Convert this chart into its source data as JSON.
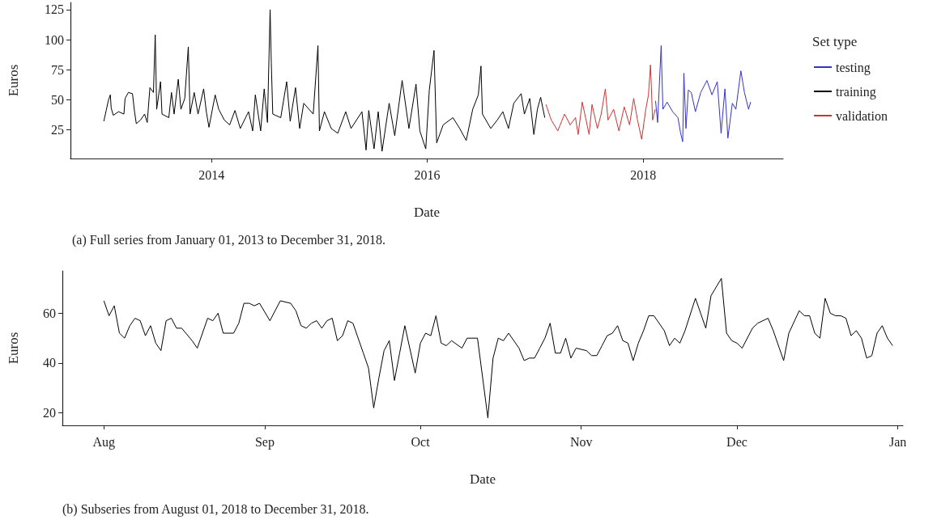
{
  "chart_data": [
    {
      "type": "line",
      "xlabel": "Date",
      "ylabel": "Euros",
      "legend_title": "Set type",
      "legend": "right",
      "grid": false,
      "xlim": [
        "2012-09-10",
        "2019-04-20"
      ],
      "xticks": [
        {
          "value": "2014-01-01",
          "label": "2014"
        },
        {
          "value": "2016-01-01",
          "label": "2016"
        },
        {
          "value": "2018-01-01",
          "label": "2018"
        }
      ],
      "ylim": [
        1,
        131
      ],
      "yticks": [
        25,
        50,
        75,
        100,
        125
      ],
      "annotations": [
        "(a) Full series from January 01, 2013 to December 31, 2018."
      ],
      "series": [
        {
          "name": "testing",
          "color": "#3333cc",
          "x": [
            "2018-02-12",
            "2018-02-19",
            "2018-03-03",
            "2018-03-09",
            "2018-03-23",
            "2018-04-11",
            "2018-04-29",
            "2018-05-08",
            "2018-05-15",
            "2018-05-19",
            "2018-05-26",
            "2018-06-03",
            "2018-06-13",
            "2018-06-27",
            "2018-07-15",
            "2018-08-05",
            "2018-08-22",
            "2018-09-09",
            "2018-09-22",
            "2018-10-05",
            "2018-10-15",
            "2018-10-30",
            "2018-11-11",
            "2018-11-28",
            "2018-12-10",
            "2018-12-24",
            "2018-12-31"
          ],
          "values": [
            49,
            31,
            95,
            42,
            48,
            40,
            35,
            22,
            15,
            72,
            26,
            58,
            56,
            40,
            56,
            66,
            54,
            65,
            22,
            59,
            18,
            47,
            42,
            74,
            56,
            42,
            48
          ]
        },
        {
          "name": "training",
          "color": "#000000",
          "x": [
            "2013-01-01",
            "2013-01-09",
            "2013-01-16",
            "2013-01-23",
            "2013-01-26",
            "2013-02-02",
            "2013-02-20",
            "2013-03-10",
            "2013-03-14",
            "2013-03-25",
            "2013-04-08",
            "2013-04-15",
            "2013-04-21",
            "2013-05-05",
            "2013-05-19",
            "2013-05-28",
            "2013-06-06",
            "2013-06-18",
            "2013-06-24",
            "2013-06-29",
            "2013-07-12",
            "2013-07-17",
            "2013-08-09",
            "2013-08-18",
            "2013-08-27",
            "2013-09-10",
            "2013-09-19",
            "2013-10-02",
            "2013-10-14",
            "2013-10-20",
            "2013-11-03",
            "2013-11-16",
            "2013-12-05",
            "2013-12-14",
            "2013-12-23",
            "2014-01-13",
            "2014-01-25",
            "2014-02-13",
            "2014-03-03",
            "2014-03-21",
            "2014-04-08",
            "2014-05-06",
            "2014-05-20",
            "2014-05-29",
            "2014-06-16",
            "2014-06-28",
            "2014-07-09",
            "2014-07-18",
            "2014-07-22",
            "2014-07-27",
            "2014-08-23",
            "2014-09-12",
            "2014-09-24",
            "2014-10-12",
            "2014-10-26",
            "2014-11-09",
            "2014-12-11",
            "2014-12-27",
            "2015-01-01",
            "2015-01-18",
            "2015-02-10",
            "2015-03-04",
            "2015-03-31",
            "2015-04-18",
            "2015-05-25",
            "2015-06-08",
            "2015-06-17",
            "2015-07-05",
            "2015-07-19",
            "2015-08-01",
            "2015-08-25",
            "2015-09-13",
            "2015-10-08",
            "2015-10-31",
            "2015-11-24",
            "2015-12-07",
            "2015-12-27",
            "2016-01-08",
            "2016-01-24",
            "2016-02-02",
            "2016-02-24",
            "2016-03-28",
            "2016-04-20",
            "2016-05-12",
            "2016-06-03",
            "2016-06-22",
            "2016-07-01",
            "2016-07-06",
            "2016-08-03",
            "2016-08-25",
            "2016-09-13",
            "2016-10-02",
            "2016-10-20",
            "2016-11-14",
            "2016-11-25",
            "2016-12-13",
            "2016-12-27",
            "2017-01-08",
            "2017-01-19",
            "2017-02-02"
          ],
          "values": [
            32,
            41,
            49,
            54,
            43,
            37,
            40,
            38,
            51,
            56,
            55,
            40,
            30,
            33,
            38,
            31,
            60,
            56,
            104,
            42,
            65,
            38,
            35,
            56,
            38,
            67,
            42,
            51,
            94,
            38,
            56,
            38,
            59,
            40,
            27,
            54,
            42,
            33,
            29,
            41,
            26,
            40,
            24,
            54,
            24,
            59,
            31,
            125,
            81,
            38,
            35,
            65,
            32,
            60,
            26,
            47,
            38,
            95,
            24,
            40,
            26,
            22,
            40,
            26,
            40,
            8,
            41,
            9,
            40,
            7,
            47,
            20,
            66,
            26,
            63,
            24,
            9,
            58,
            91,
            14,
            29,
            35,
            26,
            16,
            42,
            54,
            78,
            38,
            26,
            33,
            40,
            26,
            47,
            55,
            38,
            51,
            21,
            42,
            52,
            35
          ]
        },
        {
          "name": "validation",
          "color": "#cc3333",
          "x": [
            "2017-02-06",
            "2017-02-24",
            "2017-03-18",
            "2017-04-10",
            "2017-04-29",
            "2017-05-17",
            "2017-05-26",
            "2017-06-09",
            "2017-07-02",
            "2017-07-12",
            "2017-07-30",
            "2017-08-12",
            "2017-08-26",
            "2017-09-04",
            "2017-09-23",
            "2017-10-11",
            "2017-10-29",
            "2017-11-16",
            "2017-11-30",
            "2017-12-13",
            "2017-12-27",
            "2018-01-10",
            "2018-01-19",
            "2018-01-26",
            "2018-02-02",
            "2018-02-11"
          ],
          "values": [
            46,
            33,
            24,
            38,
            29,
            35,
            21,
            48,
            21,
            46,
            26,
            38,
            59,
            33,
            42,
            24,
            44,
            29,
            51,
            33,
            17,
            42,
            54,
            79,
            33,
            42
          ]
        }
      ]
    },
    {
      "type": "line",
      "xlabel": "Date",
      "ylabel": "Euros",
      "grid": false,
      "xlim": [
        "2018-07-24",
        "2019-01-02"
      ],
      "xticks": [
        {
          "value": "2018-08-01",
          "label": "Aug"
        },
        {
          "value": "2018-09-01",
          "label": "Sep"
        },
        {
          "value": "2018-10-01",
          "label": "Oct"
        },
        {
          "value": "2018-11-01",
          "label": "Nov"
        },
        {
          "value": "2018-12-01",
          "label": "Dec"
        },
        {
          "value": "2019-01-01",
          "label": "Jan"
        }
      ],
      "ylim": [
        15,
        77
      ],
      "yticks": [
        20,
        40,
        60
      ],
      "annotations": [
        "(b) Subseries from August 01, 2018 to December 31, 2018."
      ],
      "series": [
        {
          "color": "#000000",
          "x": [
            "2018-08-01",
            "2018-08-02",
            "2018-08-03",
            "2018-08-04",
            "2018-08-05",
            "2018-08-06",
            "2018-08-07",
            "2018-08-08",
            "2018-08-09",
            "2018-08-10",
            "2018-08-11",
            "2018-08-12",
            "2018-08-13",
            "2018-08-14",
            "2018-08-15",
            "2018-08-16",
            "2018-08-18",
            "2018-08-19",
            "2018-08-20",
            "2018-08-21",
            "2018-08-22",
            "2018-08-23",
            "2018-08-24",
            "2018-08-25",
            "2018-08-26",
            "2018-08-27",
            "2018-08-28",
            "2018-08-29",
            "2018-08-30",
            "2018-08-31",
            "2018-09-02",
            "2018-09-04",
            "2018-09-06",
            "2018-09-07",
            "2018-09-08",
            "2018-09-09",
            "2018-09-10",
            "2018-09-11",
            "2018-09-12",
            "2018-09-13",
            "2018-09-14",
            "2018-09-15",
            "2018-09-16",
            "2018-09-17",
            "2018-09-18",
            "2018-09-20",
            "2018-09-21",
            "2018-09-22",
            "2018-09-23",
            "2018-09-24",
            "2018-09-25",
            "2018-09-26",
            "2018-09-27",
            "2018-09-28",
            "2018-09-30",
            "2018-10-01",
            "2018-10-02",
            "2018-10-03",
            "2018-10-04",
            "2018-10-05",
            "2018-10-06",
            "2018-10-07",
            "2018-10-09",
            "2018-10-10",
            "2018-10-12",
            "2018-10-14",
            "2018-10-15",
            "2018-10-16",
            "2018-10-17",
            "2018-10-18",
            "2018-10-20",
            "2018-10-21",
            "2018-10-22",
            "2018-10-23",
            "2018-10-24",
            "2018-10-25",
            "2018-10-26",
            "2018-10-27",
            "2018-10-28",
            "2018-10-29",
            "2018-10-30",
            "2018-10-31",
            "2018-11-02",
            "2018-11-03",
            "2018-11-04",
            "2018-11-05",
            "2018-11-06",
            "2018-11-07",
            "2018-11-08",
            "2018-11-09",
            "2018-11-10",
            "2018-11-11",
            "2018-11-12",
            "2018-11-13",
            "2018-11-14",
            "2018-11-15",
            "2018-11-17",
            "2018-11-18",
            "2018-11-19",
            "2018-11-20",
            "2018-11-21",
            "2018-11-23",
            "2018-11-24",
            "2018-11-25",
            "2018-11-26",
            "2018-11-28",
            "2018-11-29",
            "2018-11-30",
            "2018-12-01",
            "2018-12-02",
            "2018-12-04",
            "2018-12-05",
            "2018-12-07",
            "2018-12-08",
            "2018-12-10",
            "2018-12-11",
            "2018-12-13",
            "2018-12-14",
            "2018-12-15",
            "2018-12-16",
            "2018-12-17",
            "2018-12-18",
            "2018-12-19",
            "2018-12-20",
            "2018-12-21",
            "2018-12-22",
            "2018-12-23",
            "2018-12-24",
            "2018-12-25",
            "2018-12-26",
            "2018-12-27",
            "2018-12-28",
            "2018-12-29",
            "2018-12-30",
            "2018-12-31"
          ],
          "values": [
            65,
            59,
            63,
            52,
            50,
            55,
            58,
            57,
            51,
            55,
            48,
            45,
            57,
            58,
            54,
            54,
            49,
            46,
            52,
            58,
            57,
            60,
            52,
            52,
            52,
            56,
            64,
            64,
            63,
            64,
            57,
            65,
            64,
            61,
            55,
            54,
            56,
            57,
            54,
            57,
            58,
            49,
            51,
            57,
            56,
            44,
            38,
            22,
            34,
            45,
            49,
            33,
            44,
            55,
            36,
            48,
            52,
            51,
            59,
            48,
            47,
            49,
            46,
            50,
            50,
            18,
            42,
            50,
            49,
            52,
            46,
            41,
            42,
            42,
            46,
            50,
            56,
            44,
            44,
            50,
            42,
            46,
            45,
            43,
            43,
            47,
            51,
            52,
            55,
            49,
            48,
            41,
            48,
            53,
            59,
            59,
            53,
            47,
            50,
            48,
            53,
            66,
            60,
            54,
            67,
            74,
            52,
            49,
            48,
            46,
            54,
            56,
            58,
            53,
            41,
            52,
            61,
            59,
            59,
            52,
            50,
            66,
            60,
            59,
            59,
            58,
            51,
            53,
            50,
            42,
            43,
            52,
            55,
            50,
            47
          ]
        }
      ]
    }
  ]
}
